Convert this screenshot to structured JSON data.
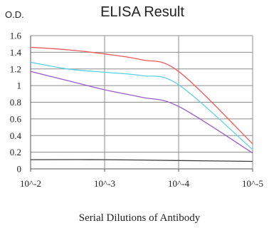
{
  "chart_data": {
    "type": "line",
    "title": "ELISA Result",
    "ylabel": "O.D.",
    "xlabel": "Serial Dilutions of Antibody",
    "categories": [
      "10^-2",
      "10^-3",
      "10^-4",
      "10^-5"
    ],
    "ylim": [
      0,
      1.6
    ],
    "yticks": [
      "0",
      "0.2",
      "0.4",
      "0.6",
      "0.8",
      "1",
      "1.2",
      "1.4",
      "1.6"
    ],
    "grid": true,
    "series": [
      {
        "color": "#f05a5a",
        "points": [
          [
            0,
            1.46
          ],
          [
            0.5,
            1.43
          ],
          [
            1,
            1.38
          ],
          [
            1.5,
            1.31
          ],
          [
            2,
            1.17
          ],
          [
            3,
            0.3
          ]
        ]
      },
      {
        "color": "#5bd0ec",
        "points": [
          [
            0,
            1.28
          ],
          [
            0.5,
            1.2
          ],
          [
            1,
            1.16
          ],
          [
            1.5,
            1.12
          ],
          [
            2,
            1.01
          ],
          [
            3,
            0.23
          ]
        ]
      },
      {
        "color": "#9a5cc6",
        "points": [
          [
            0,
            1.17
          ],
          [
            0.5,
            1.06
          ],
          [
            1,
            0.95
          ],
          [
            1.5,
            0.86
          ],
          [
            2,
            0.75
          ],
          [
            3,
            0.19
          ]
        ]
      },
      {
        "color": "#3c3c3c",
        "points": [
          [
            0,
            0.11
          ],
          [
            1,
            0.11
          ],
          [
            2,
            0.1
          ],
          [
            3,
            0.09
          ]
        ]
      }
    ]
  }
}
